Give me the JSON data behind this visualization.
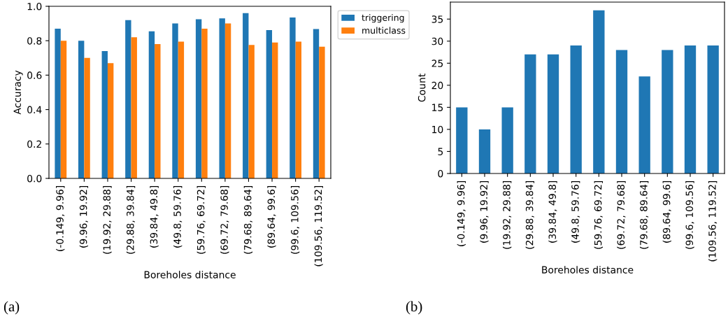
{
  "chart_data": [
    {
      "type": "bar",
      "categories": [
        "(-0.149, 9.96]",
        "(9.96, 19.92]",
        "(19.92, 29.88]",
        "(29.88, 39.84]",
        "(39.84, 49.8]",
        "(49.8, 59.76]",
        "(59.76, 69.72]",
        "(69.72, 79.68]",
        "(79.68, 89.64]",
        "(89.64, 99.6]",
        "(99.6, 109.56]",
        "(109.56, 119.52]"
      ],
      "series": [
        {
          "name": "triggering",
          "color": "#1f77b4",
          "values": [
            0.87,
            0.8,
            0.74,
            0.92,
            0.855,
            0.9,
            0.925,
            0.93,
            0.96,
            0.862,
            0.935,
            0.868
          ]
        },
        {
          "name": "multiclass",
          "color": "#ff7f0e",
          "values": [
            0.8,
            0.7,
            0.67,
            0.82,
            0.78,
            0.795,
            0.87,
            0.9,
            0.775,
            0.79,
            0.795,
            0.765
          ]
        }
      ],
      "xlabel": "Boreholes distance",
      "ylabel": "Accuracy",
      "ylim": [
        0,
        1.0
      ],
      "yticks": [
        {
          "value": 0,
          "label": "0.0"
        },
        0.2,
        0.4,
        0.6,
        0.8,
        {
          "value": 1,
          "label": "1.0"
        }
      ],
      "legend": "right",
      "annotations": [
        "(a)"
      ]
    },
    {
      "type": "bar",
      "categories": [
        "(-0.149, 9.96]",
        "(9.96, 19.92]",
        "(19.92, 29.88]",
        "(29.88, 39.84]",
        "(39.84, 49.8]",
        "(49.8, 59.76]",
        "(59.76, 69.72]",
        "(69.72, 79.68]",
        "(79.68, 89.64]",
        "(89.64, 99.6]",
        "(99.6, 109.56]",
        "(109.56, 119.52]"
      ],
      "series": [
        {
          "color": "#1f77b4",
          "values": [
            15,
            10,
            15,
            27,
            27,
            29,
            37,
            28,
            22,
            28,
            29,
            29
          ]
        }
      ],
      "xlabel": "Boreholes distance",
      "ylabel": "Count",
      "ylim": [
        0,
        38.85
      ],
      "yticks": [
        0,
        5,
        10,
        15,
        20,
        25,
        30,
        35
      ],
      "annotations": [
        "(b)"
      ]
    }
  ]
}
